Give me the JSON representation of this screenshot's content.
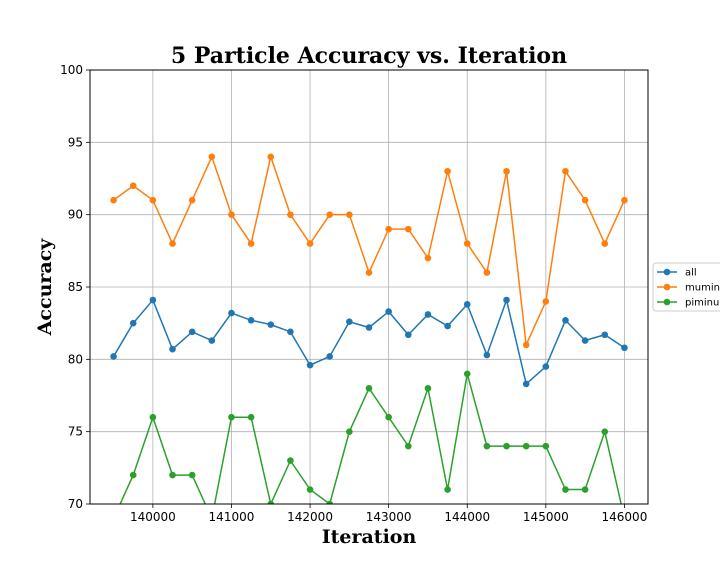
{
  "chart_data": {
    "type": "line",
    "title": "5 Particle Accuracy vs. Iteration",
    "xlabel": "Iteration",
    "ylabel": "Accuracy",
    "xlim": [
      139200,
      146300
    ],
    "ylim": [
      70,
      100
    ],
    "xticks": [
      140000,
      141000,
      142000,
      143000,
      144000,
      145000,
      146000
    ],
    "yticks": [
      70,
      75,
      80,
      85,
      90,
      95,
      100
    ],
    "grid": true,
    "legend_position": "right",
    "x": [
      139500,
      139750,
      140000,
      140250,
      140500,
      140750,
      141000,
      141250,
      141500,
      141750,
      142000,
      142250,
      142500,
      142750,
      143000,
      143250,
      143500,
      143750,
      144000,
      144250,
      144500,
      144750,
      145000,
      145250,
      145500,
      145750,
      146000
    ],
    "series": [
      {
        "name": "all",
        "color": "#1f77b4",
        "values": [
          80.2,
          82.5,
          84.1,
          80.7,
          81.9,
          81.3,
          83.2,
          82.7,
          82.4,
          81.9,
          79.6,
          80.2,
          82.6,
          82.2,
          83.3,
          81.7,
          83.1,
          82.3,
          83.8,
          80.3,
          84.1,
          78.3,
          79.5,
          82.7,
          81.3,
          81.7,
          80.8
        ]
      },
      {
        "name": "mumin",
        "color": "#ff7f0e",
        "values": [
          91,
          92,
          91,
          88,
          91,
          94,
          90,
          88,
          94,
          90,
          88,
          90,
          90,
          86,
          89,
          89,
          87,
          93,
          88,
          86,
          93,
          81,
          84,
          93,
          91,
          88,
          91
        ]
      },
      {
        "name": "piminu",
        "color": "#2ca02c",
        "values": [
          69,
          72,
          76,
          72,
          72,
          69,
          76,
          76,
          70,
          73,
          71,
          70,
          75,
          78,
          76,
          74,
          78,
          71,
          79,
          74,
          74,
          74,
          74,
          71,
          71,
          75,
          69
        ]
      }
    ]
  }
}
